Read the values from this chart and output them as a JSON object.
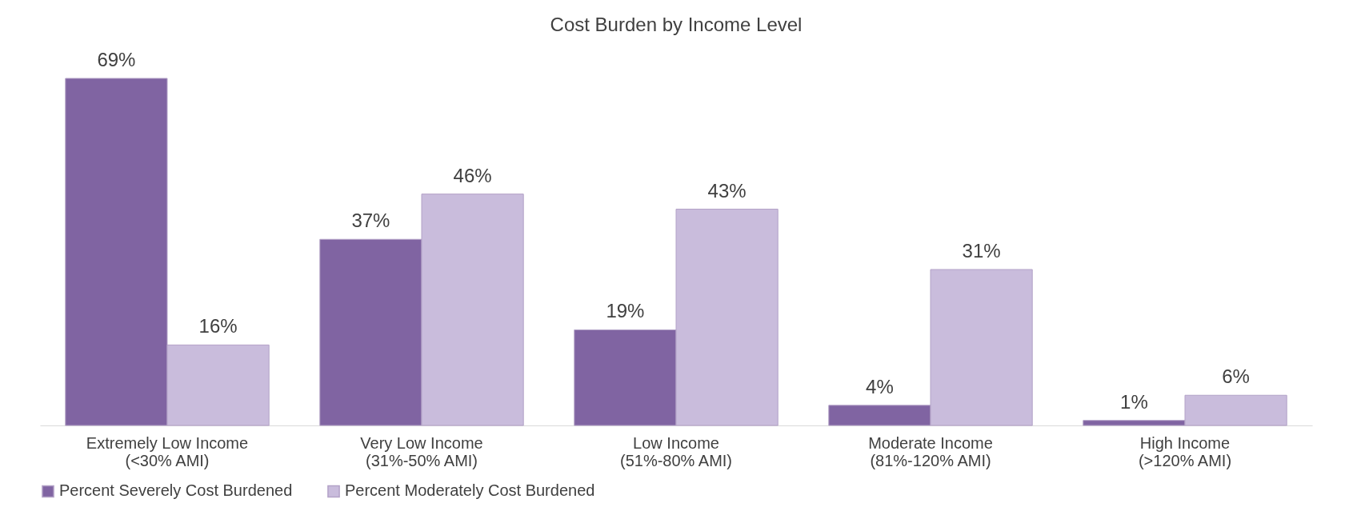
{
  "chart_data": {
    "type": "bar",
    "title": "Cost Burden by Income Level",
    "categories": [
      "Extremely Low Income\n(<30% AMI)",
      "Very Low Income\n(31%-50% AMI)",
      "Low Income\n(51%-80% AMI)",
      "Moderate Income\n(81%-120% AMI)",
      "High Income\n(>120% AMI)"
    ],
    "series": [
      {
        "name": "Percent Severely Cost Burdened",
        "color": "#8064a2",
        "values": [
          69,
          37,
          19,
          4,
          1
        ],
        "value_labels": [
          "69%",
          "37%",
          "19%",
          "4%",
          "1%"
        ]
      },
      {
        "name": "Percent Moderately Cost Burdened",
        "color": "#c9bcdc",
        "values": [
          16,
          46,
          43,
          31,
          6
        ],
        "value_labels": [
          "16%",
          "46%",
          "43%",
          "31%",
          "6%"
        ]
      }
    ],
    "legend": "bottom",
    "tick_labels": "x",
    "grid": false
  }
}
